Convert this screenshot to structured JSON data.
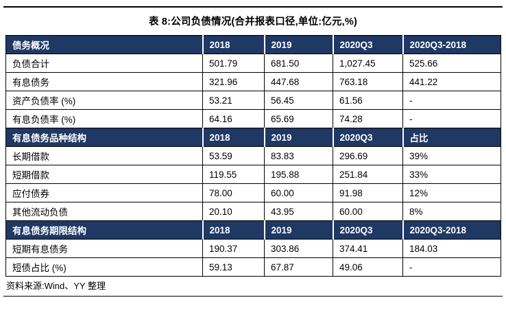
{
  "page": {
    "title": "表 8:公司负债情况(合并报表口径,单位:亿元,%)",
    "source": "资料来源:Wind、YY 整理"
  },
  "colors": {
    "section_header_bg": "#1F3864",
    "section_header_text": "#FFFFFF",
    "border": "#000000",
    "body_text": "#000000"
  },
  "table": {
    "sections": [
      {
        "header": [
          "债务概况",
          "2018",
          "2019",
          "2020Q3",
          "2020Q3-2018"
        ],
        "rows": [
          [
            "负债合计",
            "501.79",
            "681.50",
            "1,027.45",
            "525.66"
          ],
          [
            "有息债务",
            "321.96",
            "447.68",
            "763.18",
            "441.22"
          ],
          [
            "资产负债率 (%)",
            "53.21",
            "56.45",
            "61.56",
            "-"
          ],
          [
            "有息负债率 (%)",
            "64.16",
            "65.69",
            "74.28",
            "-"
          ]
        ]
      },
      {
        "header": [
          "有息债务品种结构",
          "2018",
          "2019",
          "2020Q3",
          "占比"
        ],
        "rows": [
          [
            "长期借款",
            "53.59",
            "83.83",
            "296.69",
            "39%"
          ],
          [
            "短期借款",
            "119.55",
            "195.88",
            "251.84",
            "33%"
          ],
          [
            "应付债券",
            "78.00",
            "60.00",
            "91.98",
            "12%"
          ],
          [
            "其他流动负债",
            "20.10",
            "43.95",
            "60.00",
            "8%"
          ]
        ]
      },
      {
        "header": [
          "有息债务期限结构",
          "2018",
          "2019",
          "2020Q3",
          "2020Q3-2018"
        ],
        "rows": [
          [
            "短期有息债务",
            "190.37",
            "303.86",
            "374.41",
            "184.03"
          ],
          [
            "短债占比 (%)",
            "59.13",
            "67.87",
            "49.06",
            "-"
          ]
        ]
      }
    ]
  }
}
